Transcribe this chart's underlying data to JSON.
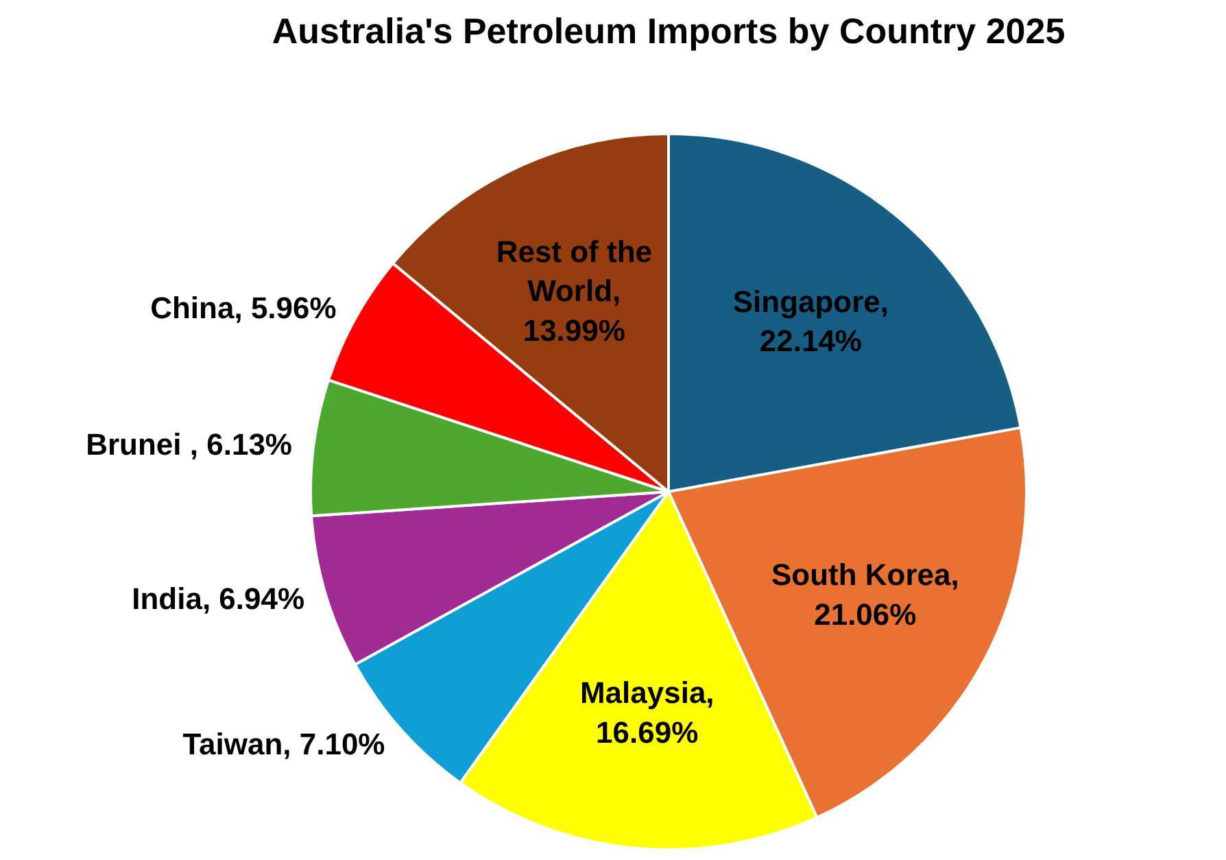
{
  "chart_data": {
    "type": "pie",
    "title": "Australia's Petroleum Imports by Country 2025",
    "categories": [
      "Singapore",
      "South Korea",
      "Malaysia",
      "Taiwan",
      "India",
      "Brunei ",
      "China",
      "Rest of the World"
    ],
    "values": [
      22.14,
      21.06,
      16.69,
      7.1,
      6.94,
      6.13,
      5.96,
      13.99
    ],
    "colors": [
      "#175e84",
      "#e97132",
      "#ffff00",
      "#0f9ed5",
      "#a02b93",
      "#4ea72e",
      "#ff0000",
      "#953d11"
    ],
    "value_labels": [
      ", 22.14%",
      ", 21.06%",
      ", 16.69%",
      ", 7.10%",
      ", 6.94%",
      ", 6.13%",
      ", 5.96%",
      ", 13.99%"
    ]
  }
}
